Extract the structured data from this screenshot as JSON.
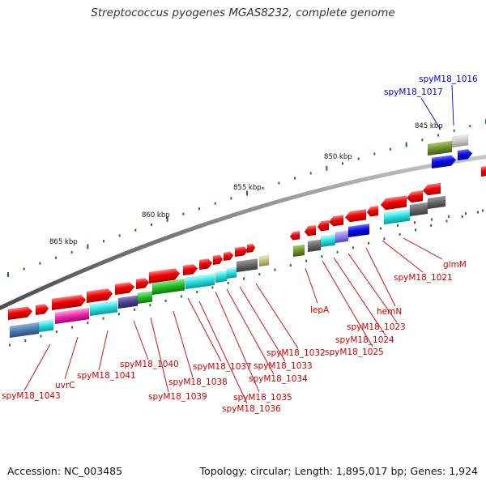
{
  "title": "Streptococcus pyogenes MGAS8232, complete genome",
  "footer": {
    "accession": "Accession: NC_003485",
    "topology": "Topology: circular; Length: 1,895,017 bp; Genes: 1,924"
  },
  "scale_labels": [
    "845 kbp",
    "850 kbp",
    "855 kbp",
    "860 kbp",
    "865 kbp"
  ],
  "gene_labels_blue": [
    "spyM18_1016",
    "spyM18_1017"
  ],
  "gene_labels_red": [
    "glmM",
    "spyM18_1021",
    "hemN",
    "spyM18_1023",
    "spyM18_1024",
    "spyM18_1025",
    "lepA",
    "spyM18_1032",
    "spyM18_1033",
    "spyM18_1034",
    "spyM18_1035",
    "spyM18_1036",
    "spyM18_1037",
    "spyM18_1038",
    "spyM18_1039",
    "spyM18_1040",
    "spyM18_1041",
    "uvrC",
    "spyM18_1043"
  ],
  "colors": {
    "backbone": "#888888",
    "gene": "#ee0000",
    "label_red": "#cc0000",
    "label_blue": "#0000cc",
    "tick": "#1a7a1a"
  }
}
